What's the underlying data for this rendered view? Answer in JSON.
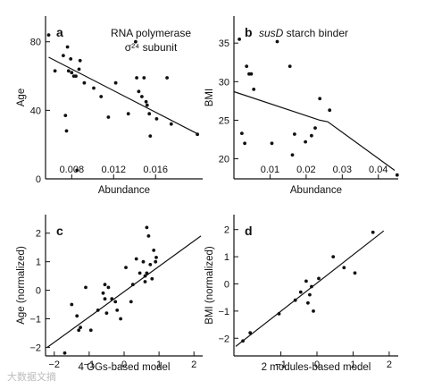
{
  "watermark": "大数据文摘",
  "chart_data": [
    {
      "panel": "a",
      "type": "scatter",
      "title_lines": [
        "RNA polymerase",
        "σ²⁴ subunit"
      ],
      "title_italic": false,
      "xlabel": "Abundance",
      "ylabel": "Age",
      "xlim": [
        0.0055,
        0.0205
      ],
      "ylim": [
        0,
        95
      ],
      "xticks": [
        0.008,
        0.012,
        0.016
      ],
      "xtick_labels": [
        "0.008",
        "0.012",
        "0.016"
      ],
      "xtick_labels_inside": true,
      "yticks": [
        0,
        40,
        80
      ],
      "ytick_labels": [
        "0",
        "40",
        "80"
      ],
      "points": [
        [
          0.0058,
          84
        ],
        [
          0.0064,
          63
        ],
        [
          0.0072,
          72
        ],
        [
          0.0074,
          37
        ],
        [
          0.0075,
          28
        ],
        [
          0.0076,
          77
        ],
        [
          0.0077,
          63
        ],
        [
          0.0079,
          70
        ],
        [
          0.008,
          62
        ],
        [
          0.0082,
          60
        ],
        [
          0.0084,
          60
        ],
        [
          0.0087,
          64
        ],
        [
          0.0088,
          69
        ],
        [
          0.0085,
          5
        ],
        [
          0.0092,
          56
        ],
        [
          0.0101,
          53
        ],
        [
          0.0108,
          48
        ],
        [
          0.0115,
          36
        ],
        [
          0.0122,
          56
        ],
        [
          0.0134,
          38
        ],
        [
          0.0141,
          80
        ],
        [
          0.0142,
          59
        ],
        [
          0.0144,
          51
        ],
        [
          0.0147,
          48
        ],
        [
          0.0149,
          59
        ],
        [
          0.0151,
          45
        ],
        [
          0.0152,
          43
        ],
        [
          0.0154,
          38
        ],
        [
          0.0155,
          25
        ],
        [
          0.0161,
          35
        ],
        [
          0.0171,
          59
        ],
        [
          0.0175,
          32
        ],
        [
          0.02,
          26
        ]
      ],
      "fit": {
        "type": "line",
        "points": [
          [
            0.0058,
            71
          ],
          [
            0.0201,
            26
          ]
        ]
      }
    },
    {
      "panel": "b",
      "type": "scatter",
      "title_lines": [
        "susD starch binder"
      ],
      "title_italic_words": [
        "susD"
      ],
      "xlabel": "Abundance",
      "ylabel": "BMI",
      "xlim": [
        0,
        0.0455
      ],
      "ylim": [
        17.4,
        38.5
      ],
      "xticks": [
        0.01,
        0.02,
        0.03,
        0.04
      ],
      "xtick_labels": [
        "0.01",
        "0.02",
        "0.03",
        "0.04"
      ],
      "xtick_labels_inside": true,
      "yticks": [
        20,
        25,
        30,
        35
      ],
      "ytick_labels": [
        "20",
        "25",
        "30",
        "35"
      ],
      "points": [
        [
          0.0015,
          35.5
        ],
        [
          0.0022,
          23.3
        ],
        [
          0.003,
          22
        ],
        [
          0.0035,
          32
        ],
        [
          0.0042,
          31
        ],
        [
          0.0048,
          31
        ],
        [
          0.0055,
          29
        ],
        [
          0.0105,
          22
        ],
        [
          0.012,
          35.2
        ],
        [
          0.0155,
          32
        ],
        [
          0.0162,
          20.5
        ],
        [
          0.0168,
          23.2
        ],
        [
          0.0198,
          22.2
        ],
        [
          0.0215,
          23
        ],
        [
          0.0225,
          24
        ],
        [
          0.0238,
          27.8
        ],
        [
          0.0265,
          26.3
        ],
        [
          0.0452,
          17.9
        ]
      ],
      "fit": {
        "type": "piecewise",
        "points": [
          [
            0,
            28.7
          ],
          [
            0.0238,
            25
          ],
          [
            0.026,
            24.8
          ],
          [
            0.0445,
            18.5
          ]
        ]
      }
    },
    {
      "panel": "c",
      "type": "scatter",
      "title_lines": [],
      "xlabel": "4 OGs-based model",
      "ylabel": "Age (normalized)",
      "xlim": [
        -2.25,
        2.25
      ],
      "ylim": [
        -2.3,
        2.65
      ],
      "xticks": [
        -2,
        -1,
        0,
        1,
        2
      ],
      "xtick_labels": [
        "−2",
        "−1",
        "0",
        "1",
        "2"
      ],
      "yticks": [
        -2,
        -1,
        0,
        1,
        2
      ],
      "ytick_labels": [
        "−2",
        "−1",
        "0",
        "1",
        "2"
      ],
      "points": [
        [
          -1.7,
          -2.2
        ],
        [
          -1.5,
          -0.5
        ],
        [
          -1.35,
          -0.9
        ],
        [
          -1.3,
          -1.4
        ],
        [
          -1.25,
          -1.3
        ],
        [
          -1.1,
          0.1
        ],
        [
          -0.95,
          -1.4
        ],
        [
          -0.75,
          -0.7
        ],
        [
          -0.6,
          -0.1
        ],
        [
          -0.55,
          0.2
        ],
        [
          -0.55,
          -0.3
        ],
        [
          -0.5,
          -0.8
        ],
        [
          -0.45,
          0.1
        ],
        [
          -0.35,
          -0.3
        ],
        [
          -0.25,
          -0.4
        ],
        [
          -0.2,
          -0.7
        ],
        [
          -0.1,
          -1.0
        ],
        [
          0.05,
          0.8
        ],
        [
          0.2,
          -0.4
        ],
        [
          0.25,
          0.2
        ],
        [
          0.35,
          1.1
        ],
        [
          0.45,
          0.6
        ],
        [
          0.55,
          1.0
        ],
        [
          0.6,
          0.3
        ],
        [
          0.6,
          0.5
        ],
        [
          0.65,
          2.2
        ],
        [
          0.65,
          0.6
        ],
        [
          0.7,
          1.9
        ],
        [
          0.75,
          0.9
        ],
        [
          0.8,
          0.4
        ],
        [
          0.85,
          1.4
        ],
        [
          0.9,
          1.0
        ],
        [
          0.92,
          1.15
        ]
      ],
      "fit": {
        "type": "line",
        "points": [
          [
            -2.2,
            -2.0
          ],
          [
            2.2,
            1.9
          ]
        ]
      }
    },
    {
      "panel": "d",
      "type": "scatter",
      "title_lines": [],
      "xlabel": "2 modules-based model",
      "ylabel": "BMI (normalized)",
      "xlim": [
        -2.3,
        2.25
      ],
      "ylim": [
        -2.65,
        2.55
      ],
      "xticks": [
        -1,
        0,
        1,
        2
      ],
      "xtick_labels": [
        "−1",
        "0",
        "1",
        "2"
      ],
      "yticks": [
        -2,
        -1,
        0,
        1,
        2
      ],
      "ytick_labels": [
        "−2",
        "−1",
        "0",
        "1",
        "2"
      ],
      "points": [
        [
          -2.05,
          -2.1
        ],
        [
          -1.85,
          -1.8
        ],
        [
          -1.05,
          -1.1
        ],
        [
          -0.6,
          -0.6
        ],
        [
          -0.45,
          -0.3
        ],
        [
          -0.3,
          0.1
        ],
        [
          -0.25,
          -0.7
        ],
        [
          -0.2,
          -0.4
        ],
        [
          -0.15,
          -0.1
        ],
        [
          -0.1,
          -1.0
        ],
        [
          0.05,
          0.2
        ],
        [
          0.45,
          1.0
        ],
        [
          0.75,
          0.6
        ],
        [
          1.05,
          0.4
        ],
        [
          1.55,
          1.9
        ]
      ],
      "fit": {
        "type": "line",
        "points": [
          [
            -2.25,
            -2.3
          ],
          [
            1.85,
            1.95
          ]
        ]
      }
    }
  ]
}
